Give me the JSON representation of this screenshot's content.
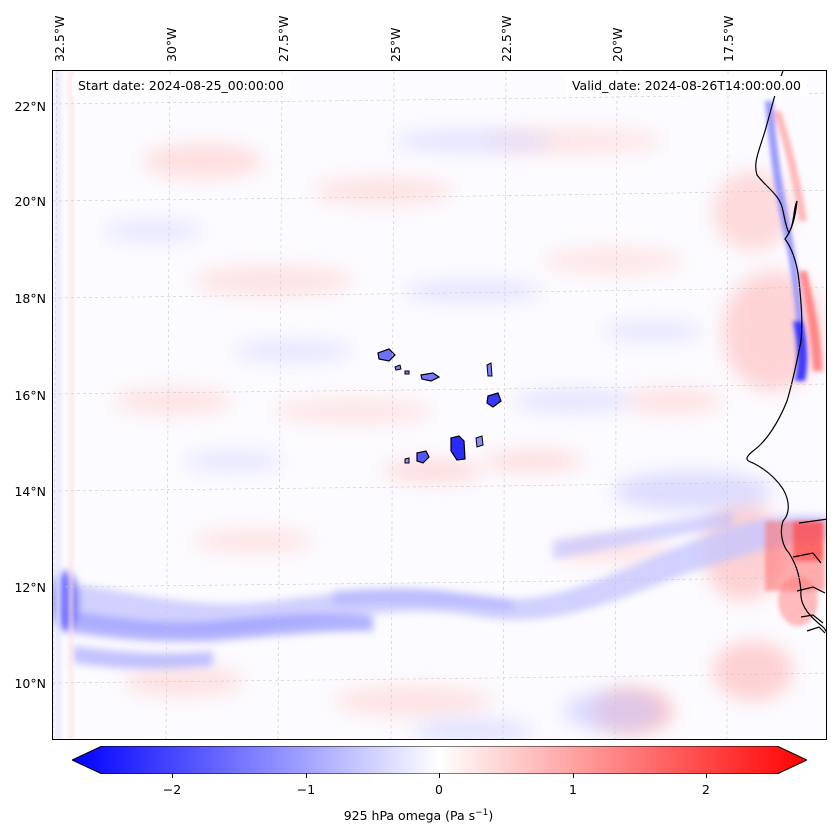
{
  "map": {
    "start_date": "Start date: 2024-08-25_00:00:00",
    "valid_date": "Valid_date: 2024-08-26T14:00:00.00",
    "lon_labels": [
      "32.5°W",
      "30°W",
      "27.5°W",
      "25°W",
      "22.5°W",
      "20°W",
      "17.5°W"
    ],
    "lat_labels": [
      "22°N",
      "20°N",
      "18°N",
      "16°N",
      "14°N",
      "12°N",
      "10°N"
    ],
    "field": "925 hPa omega",
    "colors": {
      "negative": "#0000ff",
      "zero": "#ffffff",
      "positive": "#ff0000",
      "coast": "#000000"
    }
  },
  "colorbar": {
    "ticks": [
      "−2",
      "−1",
      "0",
      "1",
      "2"
    ],
    "tick_values": [
      -2,
      -1,
      0,
      1,
      2
    ],
    "range": [
      -2.6,
      2.6
    ],
    "label_main": "925 hPa omega (Pa s",
    "label_sup": "−1",
    "label_end": ")"
  }
}
